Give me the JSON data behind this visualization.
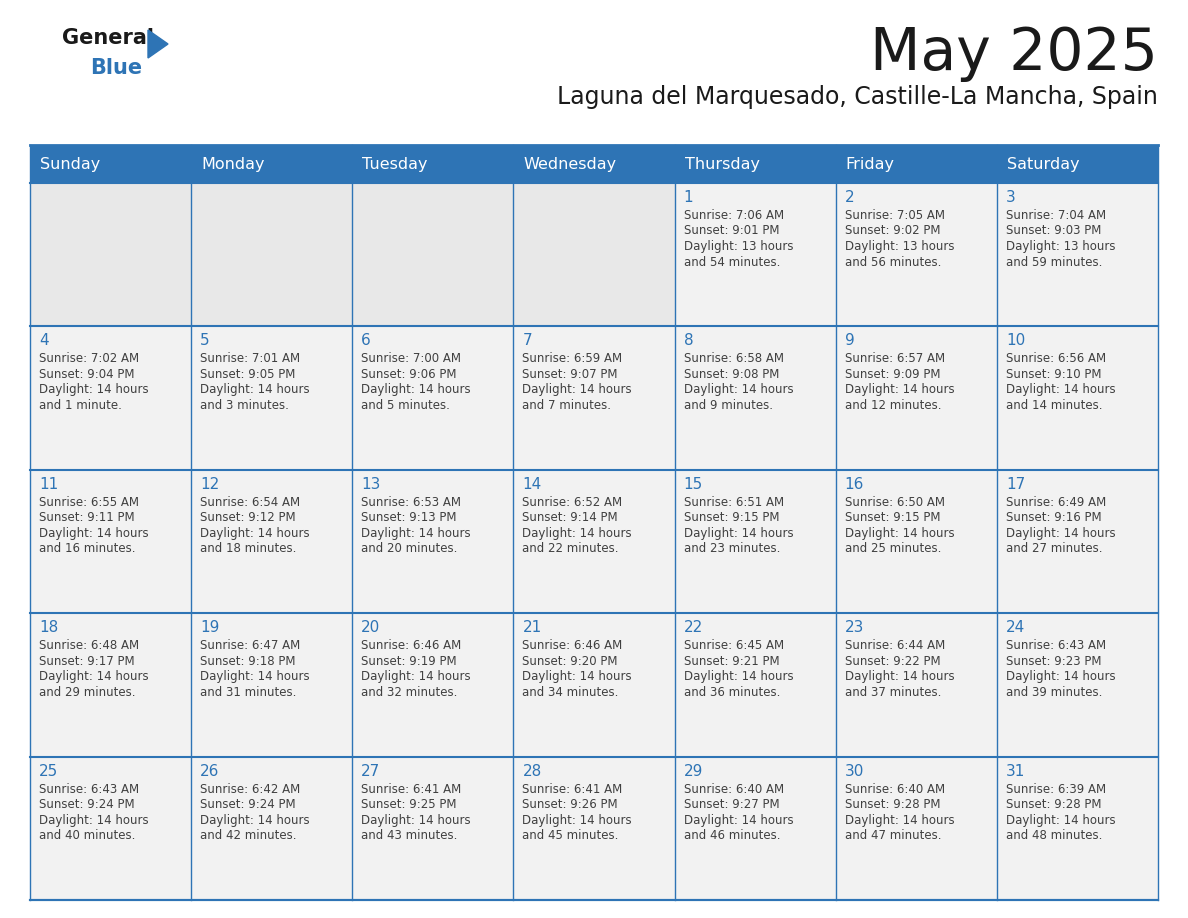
{
  "title": "May 2025",
  "subtitle": "Laguna del Marquesado, Castille-La Mancha, Spain",
  "days_of_week": [
    "Sunday",
    "Monday",
    "Tuesday",
    "Wednesday",
    "Thursday",
    "Friday",
    "Saturday"
  ],
  "header_bg": "#2E74B5",
  "header_text": "#FFFFFF",
  "cell_bg_empty": "#E8E8E8",
  "cell_bg_filled": "#F2F2F2",
  "day_number_color": "#2E74B5",
  "text_color": "#404040",
  "border_color": "#2E74B5",
  "calendar_data": [
    [
      null,
      null,
      null,
      null,
      {
        "day": 1,
        "sunrise": "7:06 AM",
        "sunset": "9:01 PM",
        "daylight_h": "13 hours",
        "daylight_m": "and 54 minutes."
      },
      {
        "day": 2,
        "sunrise": "7:05 AM",
        "sunset": "9:02 PM",
        "daylight_h": "13 hours",
        "daylight_m": "and 56 minutes."
      },
      {
        "day": 3,
        "sunrise": "7:04 AM",
        "sunset": "9:03 PM",
        "daylight_h": "13 hours",
        "daylight_m": "and 59 minutes."
      }
    ],
    [
      {
        "day": 4,
        "sunrise": "7:02 AM",
        "sunset": "9:04 PM",
        "daylight_h": "14 hours",
        "daylight_m": "and 1 minute."
      },
      {
        "day": 5,
        "sunrise": "7:01 AM",
        "sunset": "9:05 PM",
        "daylight_h": "14 hours",
        "daylight_m": "and 3 minutes."
      },
      {
        "day": 6,
        "sunrise": "7:00 AM",
        "sunset": "9:06 PM",
        "daylight_h": "14 hours",
        "daylight_m": "and 5 minutes."
      },
      {
        "day": 7,
        "sunrise": "6:59 AM",
        "sunset": "9:07 PM",
        "daylight_h": "14 hours",
        "daylight_m": "and 7 minutes."
      },
      {
        "day": 8,
        "sunrise": "6:58 AM",
        "sunset": "9:08 PM",
        "daylight_h": "14 hours",
        "daylight_m": "and 9 minutes."
      },
      {
        "day": 9,
        "sunrise": "6:57 AM",
        "sunset": "9:09 PM",
        "daylight_h": "14 hours",
        "daylight_m": "and 12 minutes."
      },
      {
        "day": 10,
        "sunrise": "6:56 AM",
        "sunset": "9:10 PM",
        "daylight_h": "14 hours",
        "daylight_m": "and 14 minutes."
      }
    ],
    [
      {
        "day": 11,
        "sunrise": "6:55 AM",
        "sunset": "9:11 PM",
        "daylight_h": "14 hours",
        "daylight_m": "and 16 minutes."
      },
      {
        "day": 12,
        "sunrise": "6:54 AM",
        "sunset": "9:12 PM",
        "daylight_h": "14 hours",
        "daylight_m": "and 18 minutes."
      },
      {
        "day": 13,
        "sunrise": "6:53 AM",
        "sunset": "9:13 PM",
        "daylight_h": "14 hours",
        "daylight_m": "and 20 minutes."
      },
      {
        "day": 14,
        "sunrise": "6:52 AM",
        "sunset": "9:14 PM",
        "daylight_h": "14 hours",
        "daylight_m": "and 22 minutes."
      },
      {
        "day": 15,
        "sunrise": "6:51 AM",
        "sunset": "9:15 PM",
        "daylight_h": "14 hours",
        "daylight_m": "and 23 minutes."
      },
      {
        "day": 16,
        "sunrise": "6:50 AM",
        "sunset": "9:15 PM",
        "daylight_h": "14 hours",
        "daylight_m": "and 25 minutes."
      },
      {
        "day": 17,
        "sunrise": "6:49 AM",
        "sunset": "9:16 PM",
        "daylight_h": "14 hours",
        "daylight_m": "and 27 minutes."
      }
    ],
    [
      {
        "day": 18,
        "sunrise": "6:48 AM",
        "sunset": "9:17 PM",
        "daylight_h": "14 hours",
        "daylight_m": "and 29 minutes."
      },
      {
        "day": 19,
        "sunrise": "6:47 AM",
        "sunset": "9:18 PM",
        "daylight_h": "14 hours",
        "daylight_m": "and 31 minutes."
      },
      {
        "day": 20,
        "sunrise": "6:46 AM",
        "sunset": "9:19 PM",
        "daylight_h": "14 hours",
        "daylight_m": "and 32 minutes."
      },
      {
        "day": 21,
        "sunrise": "6:46 AM",
        "sunset": "9:20 PM",
        "daylight_h": "14 hours",
        "daylight_m": "and 34 minutes."
      },
      {
        "day": 22,
        "sunrise": "6:45 AM",
        "sunset": "9:21 PM",
        "daylight_h": "14 hours",
        "daylight_m": "and 36 minutes."
      },
      {
        "day": 23,
        "sunrise": "6:44 AM",
        "sunset": "9:22 PM",
        "daylight_h": "14 hours",
        "daylight_m": "and 37 minutes."
      },
      {
        "day": 24,
        "sunrise": "6:43 AM",
        "sunset": "9:23 PM",
        "daylight_h": "14 hours",
        "daylight_m": "and 39 minutes."
      }
    ],
    [
      {
        "day": 25,
        "sunrise": "6:43 AM",
        "sunset": "9:24 PM",
        "daylight_h": "14 hours",
        "daylight_m": "and 40 minutes."
      },
      {
        "day": 26,
        "sunrise": "6:42 AM",
        "sunset": "9:24 PM",
        "daylight_h": "14 hours",
        "daylight_m": "and 42 minutes."
      },
      {
        "day": 27,
        "sunrise": "6:41 AM",
        "sunset": "9:25 PM",
        "daylight_h": "14 hours",
        "daylight_m": "and 43 minutes."
      },
      {
        "day": 28,
        "sunrise": "6:41 AM",
        "sunset": "9:26 PM",
        "daylight_h": "14 hours",
        "daylight_m": "and 45 minutes."
      },
      {
        "day": 29,
        "sunrise": "6:40 AM",
        "sunset": "9:27 PM",
        "daylight_h": "14 hours",
        "daylight_m": "and 46 minutes."
      },
      {
        "day": 30,
        "sunrise": "6:40 AM",
        "sunset": "9:28 PM",
        "daylight_h": "14 hours",
        "daylight_m": "and 47 minutes."
      },
      {
        "day": 31,
        "sunrise": "6:39 AM",
        "sunset": "9:28 PM",
        "daylight_h": "14 hours",
        "daylight_m": "and 48 minutes."
      }
    ]
  ]
}
